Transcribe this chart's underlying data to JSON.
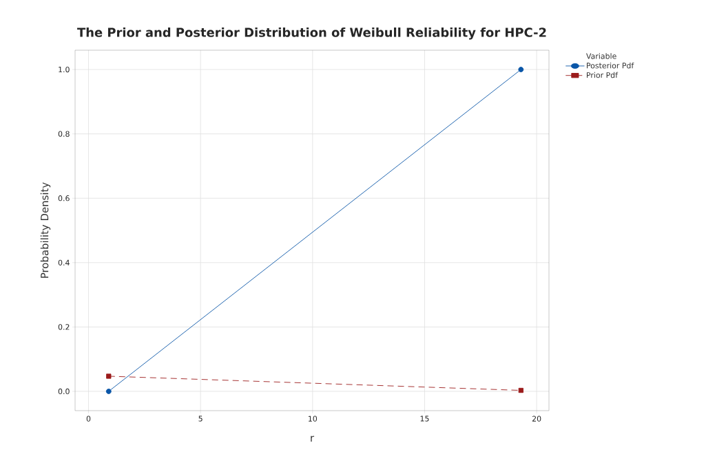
{
  "chart_data": {
    "type": "line",
    "title": "The Prior and Posterior Distribution of Weibull Reliability for HPC-2",
    "xlabel": "r",
    "ylabel": "Probability Density",
    "legend_title": "Variable",
    "x": [
      0.9,
      19.3
    ],
    "series": [
      {
        "name": "Posterior Pdf",
        "color": "#0a56a8",
        "values": [
          0.0,
          1.0
        ],
        "marker": "circle",
        "line_style": "solid"
      },
      {
        "name": "Prior Pdf",
        "color": "#9b1b1b",
        "values": [
          0.047,
          0.003
        ],
        "marker": "square",
        "line_style": "dashed"
      }
    ],
    "xlim": [
      -0.6,
      20.55
    ],
    "ylim": [
      -0.06,
      1.06
    ],
    "xticks": [
      0,
      5,
      10,
      15,
      20
    ],
    "yticks": [
      {
        "value": 0,
        "label": "0.0"
      },
      {
        "value": 0.2,
        "label": "0.2"
      },
      {
        "value": 0.4,
        "label": "0.4"
      },
      {
        "value": 0.6,
        "label": "0.6"
      },
      {
        "value": 0.8,
        "label": "0.8"
      },
      {
        "value": 1,
        "label": "1.0"
      }
    ],
    "grid": true,
    "legend": "top right"
  }
}
